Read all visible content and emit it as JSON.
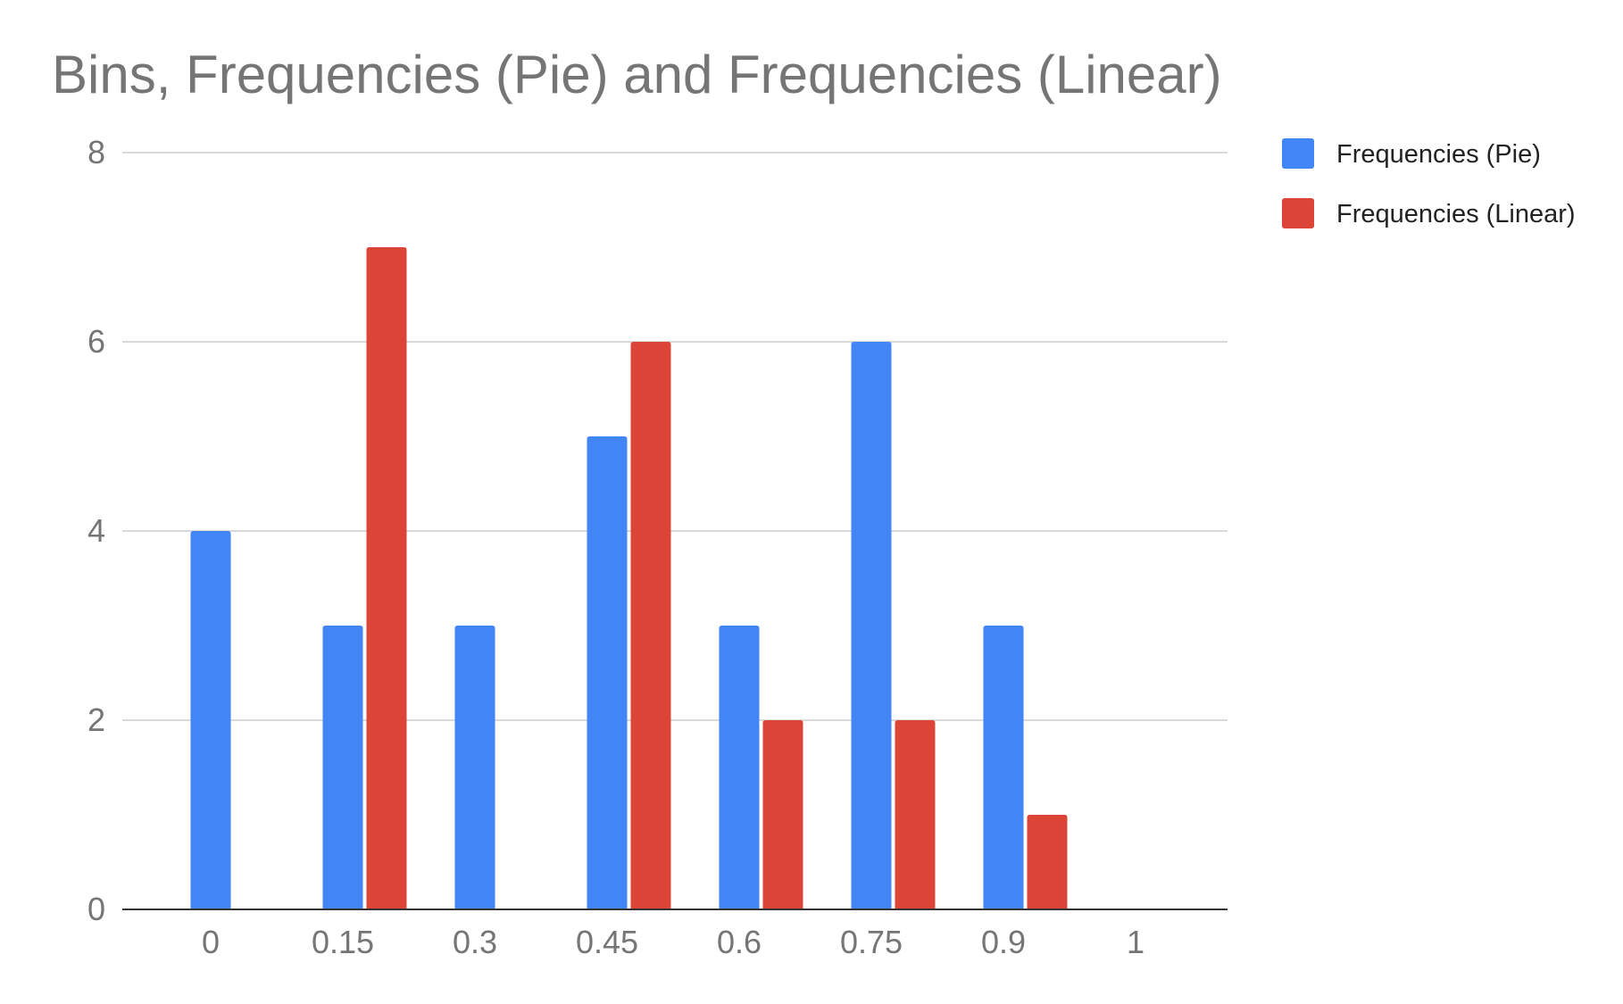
{
  "chart_data": {
    "type": "bar",
    "title": "Bins, Frequencies (Pie) and Frequencies (Linear)",
    "xlabel": "",
    "ylabel": "",
    "categories": [
      "0",
      "0.15",
      "0.3",
      "0.45",
      "0.6",
      "0.75",
      "0.9",
      "1"
    ],
    "series": [
      {
        "name": "Frequencies (Pie)",
        "color": "#4285F4",
        "values": [
          4,
          3,
          3,
          5,
          3,
          6,
          3,
          0
        ]
      },
      {
        "name": "Frequencies (Linear)",
        "color": "#DB4437",
        "values": [
          0,
          7,
          0,
          6,
          2,
          2,
          1,
          0
        ]
      }
    ],
    "ylim": [
      0,
      8
    ],
    "yticks": [
      0,
      2,
      4,
      6,
      8
    ],
    "grid": true,
    "legend_position": "right",
    "colors": {
      "gridline": "#d9d9d9",
      "axis": "#333333",
      "text": "#757575"
    }
  }
}
